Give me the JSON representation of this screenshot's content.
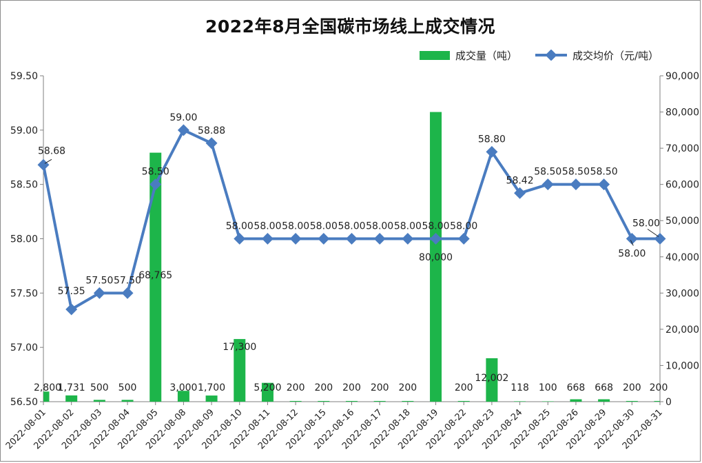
{
  "chart_data": {
    "type": "bar+line",
    "title": "2022年8月全国碳市场线上成交情况",
    "categories": [
      "2022-08-01",
      "2022-08-02",
      "2022-08-03",
      "2022-08-04",
      "2022-08-05",
      "2022-08-08",
      "2022-08-09",
      "2022-08-10",
      "2022-08-11",
      "2022-08-12",
      "2022-08-15",
      "2022-08-16",
      "2022-08-17",
      "2022-08-18",
      "2022-08-19",
      "2022-08-22",
      "2022-08-23",
      "2022-08-24",
      "2022-08-25",
      "2022-08-26",
      "2022-08-29",
      "2022-08-30",
      "2022-08-31"
    ],
    "series": [
      {
        "name": "成交量（吨）",
        "type": "bar",
        "axis": "right",
        "color": "#1db54a",
        "values": [
          2800,
          1731,
          500,
          500,
          68765,
          3000,
          1700,
          17300,
          5200,
          200,
          200,
          200,
          200,
          200,
          80000,
          200,
          12002,
          118,
          100,
          668,
          668,
          200,
          200
        ],
        "labels": [
          "2,800",
          "1,731",
          "500",
          "500",
          "68,765",
          "3,000",
          "1,700",
          "17,300",
          "5,200",
          "200",
          "200",
          "200",
          "200",
          "200",
          "80,000",
          "200",
          "12,002",
          "118",
          "100",
          "668",
          "668",
          "200",
          "200"
        ]
      },
      {
        "name": "成交均价（元/吨）",
        "type": "line",
        "axis": "left",
        "color": "#4a7cc0",
        "values": [
          58.68,
          57.35,
          57.5,
          57.5,
          58.5,
          59.0,
          58.88,
          58.0,
          58.0,
          58.0,
          58.0,
          58.0,
          58.0,
          58.0,
          58.0,
          58.0,
          58.8,
          58.42,
          58.5,
          58.5,
          58.5,
          58.0,
          58.0
        ],
        "labels": [
          "58.68",
          "57.35",
          "57.50",
          "57.50",
          "58.50",
          "59.00",
          "58.88",
          "58.00",
          "58.00",
          "58.00",
          "58.00",
          "58.00",
          "58.00",
          "58.00",
          "58.00",
          "58.00",
          "58.80",
          "58.42",
          "58.50",
          "58.50",
          "58.50",
          "58.00",
          "58.00"
        ]
      }
    ],
    "y_left": {
      "min": 56.5,
      "max": 59.5,
      "ticks": [
        "56.50",
        "57.00",
        "57.50",
        "58.00",
        "58.50",
        "59.00",
        "59.50"
      ]
    },
    "y_right": {
      "min": 0,
      "max": 90000,
      "ticks": [
        "0",
        "10,000",
        "20,000",
        "30,000",
        "40,000",
        "50,000",
        "60,000",
        "70,000",
        "80,000",
        "90,000"
      ]
    },
    "legend_position": "top-right",
    "grid": false
  }
}
